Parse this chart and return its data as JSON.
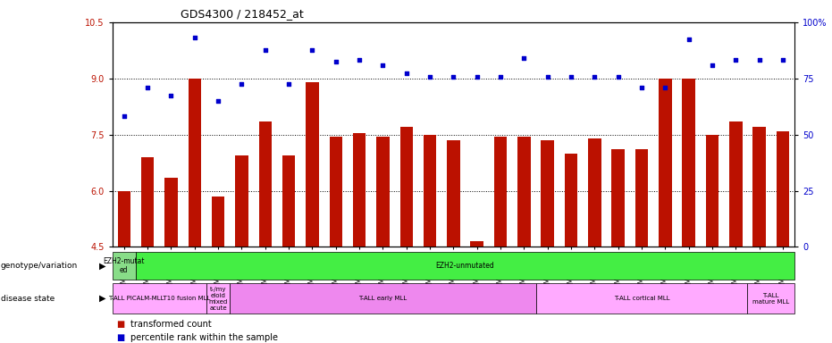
{
  "title": "GDS4300 / 218452_at",
  "samples": [
    "GSM759015",
    "GSM759018",
    "GSM759014",
    "GSM759016",
    "GSM759017",
    "GSM759019",
    "GSM759021",
    "GSM759020",
    "GSM759022",
    "GSM759023",
    "GSM759024",
    "GSM759025",
    "GSM759026",
    "GSM759027",
    "GSM759028",
    "GSM759038",
    "GSM759039",
    "GSM759040",
    "GSM759041",
    "GSM759030",
    "GSM759032",
    "GSM759033",
    "GSM759034",
    "GSM759035",
    "GSM759036",
    "GSM759037",
    "GSM759042",
    "GSM759029",
    "GSM759031"
  ],
  "bar_values": [
    6.0,
    6.9,
    6.35,
    9.0,
    5.85,
    6.95,
    7.85,
    6.95,
    8.9,
    7.45,
    7.55,
    7.45,
    7.7,
    7.5,
    7.35,
    4.65,
    7.45,
    7.45,
    7.35,
    7.0,
    7.4,
    7.1,
    7.1,
    9.0,
    9.0,
    7.5,
    7.85,
    7.7,
    7.6
  ],
  "dot_values_left_scale": [
    8.0,
    8.75,
    8.55,
    10.1,
    8.4,
    8.85,
    9.75,
    8.85,
    9.75,
    9.45,
    9.5,
    9.35,
    9.15,
    9.05,
    9.05,
    9.05,
    9.05,
    9.55,
    9.05,
    9.05,
    9.05,
    9.05,
    8.75,
    8.75,
    10.05,
    9.35,
    9.5,
    9.5,
    9.5
  ],
  "ylim_left": [
    4.5,
    10.5
  ],
  "ylim_right": [
    0,
    100
  ],
  "yticks_left": [
    4.5,
    6.0,
    7.5,
    9.0,
    10.5
  ],
  "yticks_right": [
    0,
    25,
    50,
    75,
    100
  ],
  "bar_color": "#bb1100",
  "dot_color": "#0000cc",
  "background_color": "#ffffff",
  "plot_bg_color": "#ffffff",
  "genotype_segments": [
    {
      "text": "EZH2-mutat\ned",
      "start": 0,
      "end": 1,
      "color": "#88dd88"
    },
    {
      "text": "EZH2-unmutated",
      "start": 1,
      "end": 29,
      "color": "#44ee44"
    }
  ],
  "disease_segments": [
    {
      "text": "T-ALL PICALM-MLLT10 fusion MLL",
      "start": 0,
      "end": 4,
      "color": "#ffaaff"
    },
    {
      "text": "t-/my\neloid\nmixed\nacute",
      "start": 4,
      "end": 5,
      "color": "#ffaaff"
    },
    {
      "text": "T-ALL early MLL",
      "start": 5,
      "end": 18,
      "color": "#ee88ee"
    },
    {
      "text": "T-ALL cortical MLL",
      "start": 18,
      "end": 27,
      "color": "#ffaaff"
    },
    {
      "text": "T-ALL\nmature MLL",
      "start": 27,
      "end": 29,
      "color": "#ffaaff"
    }
  ],
  "genotype_label": "genotype/variation",
  "disease_label": "disease state",
  "legend_items": [
    {
      "label": "transformed count",
      "color": "#bb1100"
    },
    {
      "label": "percentile rank within the sample",
      "color": "#0000cc"
    }
  ]
}
